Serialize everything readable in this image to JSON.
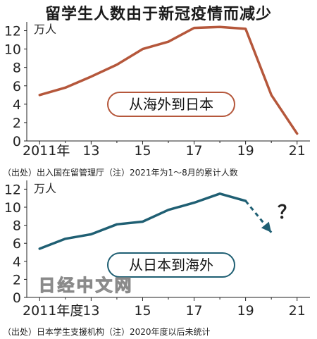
{
  "title": "留学生人数由于新冠疫情而减少",
  "chart_data": [
    {
      "type": "line",
      "ylabel": "万人",
      "ylim": [
        0,
        12.5
      ],
      "yticks": [
        0,
        2,
        4,
        6,
        8,
        10,
        12
      ],
      "x": [
        2011,
        2012,
        2013,
        2014,
        2015,
        2016,
        2017,
        2018,
        2019,
        2020,
        2021
      ],
      "xlim": [
        2010.5,
        2021.5
      ],
      "xtick_values": [
        2011,
        2013,
        2015,
        2017,
        2019,
        2021
      ],
      "xtick_labels": [
        "2011年",
        "13",
        "15",
        "17",
        "19",
        "21"
      ],
      "series": [
        {
          "name": "从海外到日本",
          "color": "#b5573b",
          "values": [
            5.0,
            5.8,
            7.0,
            8.3,
            10.0,
            10.8,
            12.3,
            12.4,
            12.2,
            5.0,
            0.8
          ]
        }
      ],
      "grid": false,
      "source": "（出处）出入国在留管理厅（注）2021年为1～8月的累计人数"
    },
    {
      "type": "line",
      "ylabel": "万人",
      "ylim": [
        0,
        12.5
      ],
      "yticks": [
        0,
        2,
        4,
        6,
        8,
        10,
        12
      ],
      "x": [
        2011,
        2012,
        2013,
        2014,
        2015,
        2016,
        2017,
        2018,
        2019,
        2020
      ],
      "xlim": [
        2010.5,
        2021.5
      ],
      "xtick_values": [
        2011,
        2013,
        2015,
        2017,
        2019,
        2021
      ],
      "xtick_labels": [
        "2011年度",
        "13",
        "15",
        "17",
        "19",
        "21"
      ],
      "series": [
        {
          "name": "从日本到海外",
          "color": "#1f5f73",
          "values": [
            5.4,
            6.5,
            7.0,
            8.1,
            8.4,
            9.7,
            10.5,
            11.5,
            10.7,
            7.2
          ],
          "dashed_from_index": 8
        }
      ],
      "annotation": "？",
      "watermark": "日经中文网",
      "grid": false,
      "source": "（出处）日本学生支援机构（注）2020年度以后未统计"
    }
  ]
}
